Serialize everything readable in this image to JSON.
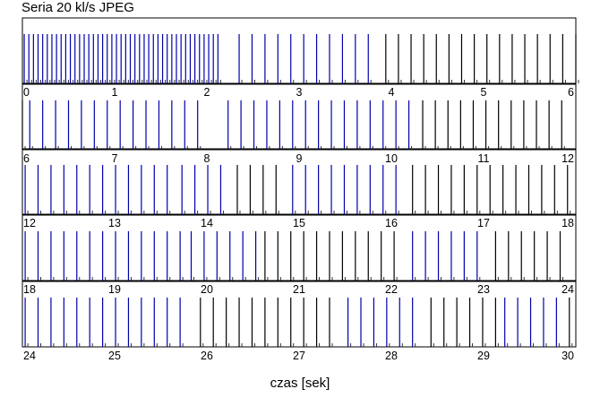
{
  "chart_data": {
    "type": "bar",
    "title": "Seria 20 kl/s JPEG",
    "xlabel": "czas [sek]",
    "rows": [
      {
        "xmin": 0,
        "xmax": 6,
        "ticks": [
          "0",
          "1",
          "2",
          "3",
          "4",
          "5",
          "6"
        ]
      },
      {
        "xmin": 6,
        "xmax": 12,
        "ticks": [
          "6",
          "7",
          "8",
          "9",
          "10",
          "11",
          "12"
        ]
      },
      {
        "xmin": 12,
        "xmax": 18,
        "ticks": [
          "12",
          "13",
          "14",
          "15",
          "16",
          "17",
          "18"
        ]
      },
      {
        "xmin": 18,
        "xmax": 24,
        "ticks": [
          "18",
          "19",
          "20",
          "21",
          "22",
          "23",
          "24"
        ]
      },
      {
        "xmin": 24,
        "xmax": 30,
        "ticks": [
          "24",
          "25",
          "26",
          "27",
          "28",
          "29",
          "30"
        ]
      }
    ],
    "series": [
      {
        "color": "#0000aa",
        "events": [
          {
            "start": 0.02,
            "end": 2.12,
            "period": 0.05
          },
          {
            "start": 2.35,
            "end": 3.86,
            "period": 0.14
          },
          {
            "start": 6.08,
            "end": 8.03,
            "period": 0.14
          },
          {
            "start": 8.23,
            "end": 10.28,
            "period": 0.14
          },
          {
            "start": 12.03,
            "end": 13.63,
            "period": 0.14
          },
          {
            "start": 13.73,
            "end": 14.23,
            "period": 0.14
          },
          {
            "start": 14.93,
            "end": 16.13,
            "period": 0.14
          },
          {
            "start": 18.03,
            "end": 19.73,
            "period": 0.14
          },
          {
            "start": 19.83,
            "end": 20.53,
            "period": 0.14
          },
          {
            "start": 22.23,
            "end": 23.03,
            "period": 0.14
          },
          {
            "start": 24.03,
            "end": 25.83,
            "period": 0.14
          },
          {
            "start": 27.53,
            "end": 28.33,
            "period": 0.14
          },
          {
            "start": 29.23,
            "end": 29.83,
            "period": 0.14
          }
        ]
      },
      {
        "color": "#000000",
        "events": [
          {
            "start": 3.94,
            "end": 5.98,
            "period": 0.137
          },
          {
            "start": 6.0,
            "end": 6.0,
            "period": 0.14
          },
          {
            "start": 10.34,
            "end": 11.94,
            "period": 0.137
          },
          {
            "start": 14.33,
            "end": 14.83,
            "period": 0.14
          },
          {
            "start": 16.23,
            "end": 17.93,
            "period": 0.14
          },
          {
            "start": 20.63,
            "end": 22.13,
            "period": 0.14
          },
          {
            "start": 23.13,
            "end": 23.93,
            "period": 0.14
          },
          {
            "start": 25.93,
            "end": 27.43,
            "period": 0.14
          },
          {
            "start": 28.43,
            "end": 29.13,
            "period": 0.14
          },
          {
            "start": 29.93,
            "end": 29.93,
            "period": 0.14
          }
        ]
      }
    ],
    "ylim": [
      0,
      1
    ],
    "grid": false
  }
}
